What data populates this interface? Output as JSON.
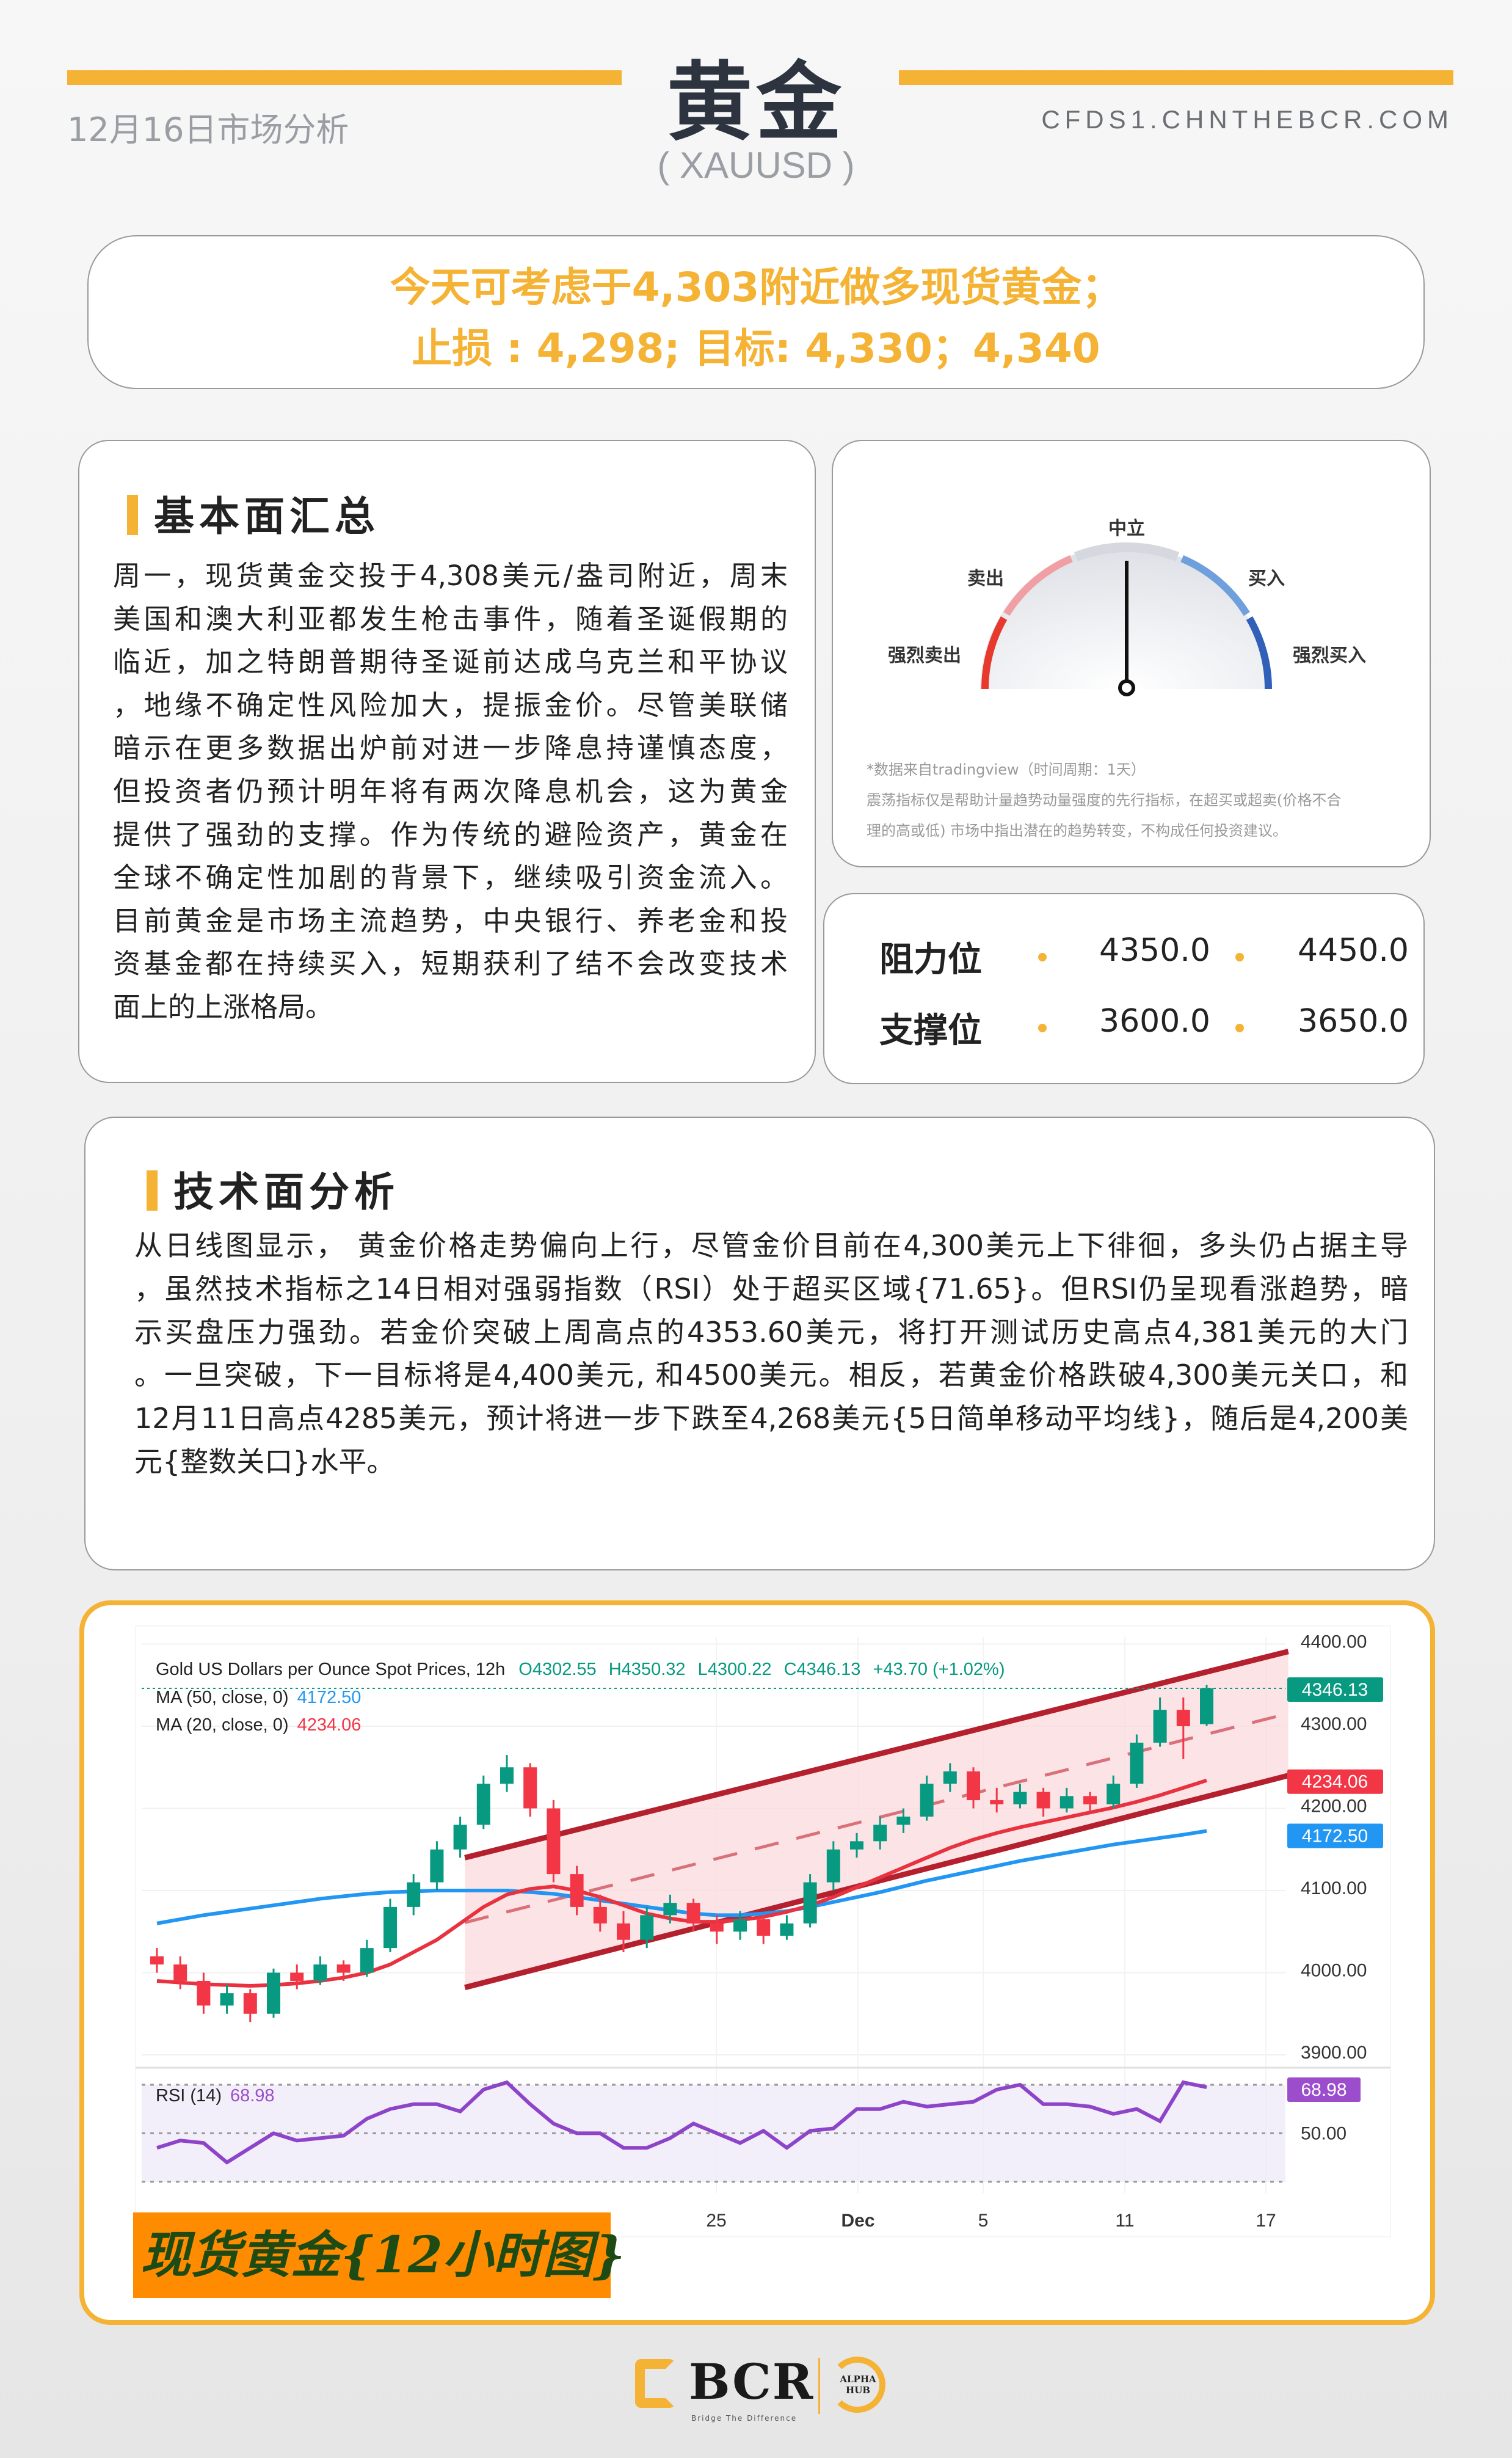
{
  "header": {
    "title": "黄金",
    "symbol": "( XAUUSD )",
    "date_label": "12月16日市场分析",
    "site": "CFDS1.CHNTHEBCR.COM"
  },
  "strategy": {
    "line1": "今天可考虑于4,303附近做多现货黄金；",
    "line2": "止损 : 4,298;  目标: 4,330；4,340"
  },
  "fundamentals": {
    "title": "基本面汇总",
    "lines": [
      "周一，现货黄金交投于4,308美元/盎司附近，周末",
      "美国和澳大利亚都发生枪击事件，随着圣诞假期的",
      "临近，加之特朗普期待圣诞前达成乌克兰和平协议",
      "，地缘不确定性风险加大，提振金价。尽管美联储",
      "暗示在更多数据出炉前对进一步降息持谨慎态度，",
      "但投资者仍预计明年将有两次降息机会，这为黄金",
      "提供了强劲的支撑。作为传统的避险资产，黄金在",
      "全球不确定性加剧的背景下，继续吸引资金流入。",
      "目前黄金是市场主流趋势，中央银行、养老金和投",
      "资基金都在持续买入，短期获利了结不会改变技术",
      "面上的上涨格局。"
    ]
  },
  "gauge": {
    "labels": {
      "strong_sell": "强烈卖出",
      "sell": "卖出",
      "neutral": "中立",
      "buy": "买入",
      "strong_buy": "强烈买入"
    },
    "reading": "neutral",
    "colors": {
      "strong_sell": "#e8392e",
      "sell": "#f0a0a4",
      "neutral": "#d5d8de",
      "buy": "#6f9fdc",
      "strong_buy": "#3060b8"
    },
    "note1": "*数据来自tradingview（时间周期：1天）",
    "note2": "震荡指标仅是帮助计量趋势动量强度的先行指标，在超买或超卖(价格不合",
    "note3": "理的高或低) 市场中指出潜在的趋势转变，不构成任何投资建议。"
  },
  "levels": {
    "resistance": {
      "label": "阻力位",
      "values": [
        "4350.0",
        "4450.0"
      ]
    },
    "support": {
      "label": "支撑位",
      "values": [
        "3600.0",
        "3650.0"
      ]
    }
  },
  "technical": {
    "title": "技术面分析",
    "lines": [
      "从日线图显示， 黄金价格走势偏向上行，尽管金价目前在4,300美元上下徘徊，多头仍占据主导",
      "，虽然技术指标之14日相对强弱指数（RSI）处于超买区域{71.65}。但RSI仍呈现看涨趋势，暗",
      "示买盘压力强劲。若金价突破上周高点的4353.60美元，将打开测试历史高点4,381美元的大门",
      "。一旦突破，下一目标将是4,400美元, 和4500美元。相反，若黄金价格跌破4,300美元关口，和",
      "12月11日高点4285美元，预计将进一步下跌至4,268美元{5日简单移动平均线}，随后是4,200美",
      "元{整数关口}水平。"
    ]
  },
  "chart_data": {
    "type": "candlestick",
    "title": "Gold US Dollars per Ounce Spot Prices, 12h",
    "ohlc_label": {
      "o": "O4302.55",
      "h": "H4350.32",
      "l": "L4300.22",
      "c": "C4346.13",
      "chg": "+43.70 (+1.02%)"
    },
    "ma50_label": "MA (50, close, 0)",
    "ma50_value": "4172.50",
    "ma20_label": "MA (20, close, 0)",
    "ma20_value": "4234.06",
    "last_price": "4346.13",
    "ylim": [
      3900,
      4400
    ],
    "y_ticks": [
      "4400.00",
      "4300.00",
      "4200.00",
      "4100.00",
      "4000.00",
      "3900.00"
    ],
    "x_ticks": [
      "25",
      "Dec",
      "5",
      "11",
      "17"
    ],
    "colors": {
      "up": "#089981",
      "down": "#f23645",
      "ma20": "#e8323f",
      "ma50": "#2196f3",
      "channel": "#b5202e",
      "rsi": "#8e44c9"
    },
    "candles": [
      [
        4020,
        4030,
        4000,
        4010
      ],
      [
        4010,
        4020,
        3980,
        3990
      ],
      [
        3990,
        4000,
        3950,
        3960
      ],
      [
        3960,
        3985,
        3950,
        3975
      ],
      [
        3975,
        3980,
        3940,
        3950
      ],
      [
        3950,
        4005,
        3945,
        4000
      ],
      [
        4000,
        4010,
        3980,
        3990
      ],
      [
        3990,
        4020,
        3985,
        4010
      ],
      [
        4010,
        4015,
        3990,
        4000
      ],
      [
        4000,
        4040,
        3995,
        4030
      ],
      [
        4030,
        4090,
        4025,
        4080
      ],
      [
        4080,
        4120,
        4070,
        4110
      ],
      [
        4110,
        4160,
        4100,
        4150
      ],
      [
        4150,
        4190,
        4140,
        4180
      ],
      [
        4180,
        4240,
        4175,
        4230
      ],
      [
        4230,
        4265,
        4220,
        4250
      ],
      [
        4250,
        4255,
        4190,
        4200
      ],
      [
        4200,
        4210,
        4110,
        4120
      ],
      [
        4120,
        4130,
        4070,
        4080
      ],
      [
        4080,
        4095,
        4050,
        4060
      ],
      [
        4060,
        4075,
        4025,
        4040
      ],
      [
        4040,
        4080,
        4030,
        4070
      ],
      [
        4070,
        4095,
        4060,
        4085
      ],
      [
        4085,
        4090,
        4050,
        4060
      ],
      [
        4060,
        4070,
        4035,
        4050
      ],
      [
        4050,
        4075,
        4040,
        4065
      ],
      [
        4065,
        4070,
        4035,
        4045
      ],
      [
        4045,
        4070,
        4040,
        4060
      ],
      [
        4060,
        4120,
        4055,
        4110
      ],
      [
        4110,
        4160,
        4100,
        4150
      ],
      [
        4150,
        4170,
        4140,
        4160
      ],
      [
        4160,
        4190,
        4150,
        4180
      ],
      [
        4180,
        4200,
        4170,
        4190
      ],
      [
        4190,
        4240,
        4185,
        4230
      ],
      [
        4230,
        4255,
        4220,
        4245
      ],
      [
        4245,
        4250,
        4200,
        4210
      ],
      [
        4210,
        4225,
        4195,
        4205
      ],
      [
        4205,
        4230,
        4200,
        4220
      ],
      [
        4220,
        4225,
        4190,
        4200
      ],
      [
        4200,
        4225,
        4195,
        4215
      ],
      [
        4215,
        4220,
        4195,
        4205
      ],
      [
        4205,
        4240,
        4200,
        4230
      ],
      [
        4230,
        4290,
        4225,
        4280
      ],
      [
        4280,
        4335,
        4275,
        4320
      ],
      [
        4320,
        4335,
        4260,
        4300
      ],
      [
        4302.55,
        4350.32,
        4300.22,
        4346.13
      ]
    ],
    "ma20": [
      3990,
      3988,
      3986,
      3985,
      3984,
      3985,
      3987,
      3990,
      3994,
      4000,
      4010,
      4025,
      4040,
      4060,
      4080,
      4095,
      4102,
      4105,
      4100,
      4092,
      4082,
      4072,
      4066,
      4062,
      4062,
      4064,
      4068,
      4074,
      4082,
      4092,
      4104,
      4116,
      4128,
      4140,
      4152,
      4162,
      4170,
      4177,
      4183,
      4189,
      4195,
      4201,
      4208,
      4216,
      4225,
      4234.06
    ],
    "ma50": [
      4060,
      4065,
      4070,
      4074,
      4078,
      4082,
      4086,
      4090,
      4093,
      4096,
      4098,
      4099,
      4100,
      4100,
      4100,
      4100,
      4098,
      4096,
      4092,
      4088,
      4084,
      4080,
      4076,
      4072,
      4070,
      4070,
      4072,
      4075,
      4080,
      4086,
      4092,
      4098,
      4105,
      4112,
      4118,
      4124,
      4130,
      4136,
      4141,
      4146,
      4151,
      4156,
      4160,
      4164,
      4168,
      4172.5
    ],
    "channel": {
      "upper": [
        4140,
        4391
      ],
      "lower": [
        3982,
        4240
      ]
    },
    "rsi": {
      "label": "RSI (14)",
      "value": "68.98",
      "levels": [
        70,
        50,
        30
      ],
      "level_label": "50.00",
      "values": [
        44,
        47,
        46,
        38,
        44,
        50,
        47,
        48,
        49,
        56,
        60,
        62,
        62,
        59,
        68,
        71,
        62,
        54,
        50,
        50,
        44,
        44,
        48,
        54,
        50,
        46,
        51,
        44,
        51,
        52,
        60,
        60,
        63,
        61,
        62,
        63,
        68,
        70,
        62,
        62,
        61,
        58,
        60,
        55,
        71,
        68.98
      ]
    }
  },
  "chart_caption": "现货黄金{12小时图}",
  "footer": {
    "logo": "BCR",
    "logo_tagline": "Bridge The Difference",
    "partner": "ALPHA HUB"
  }
}
